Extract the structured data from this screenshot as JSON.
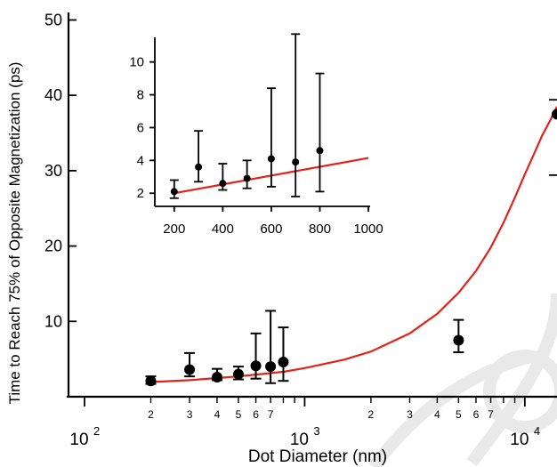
{
  "chart_data": [
    {
      "type": "scatter",
      "xlabel": "Dot Diameter (nm)",
      "ylabel": "Time to Reach 75% of Opposite Magnetization (ps)",
      "x_scale": "log",
      "xlim": [
        100,
        14000
      ],
      "ylim": [
        0,
        51
      ],
      "major_x_ticks": [
        {
          "value": 100,
          "base": "10",
          "exp": "2"
        },
        {
          "value": 1000,
          "base": "10",
          "exp": "3"
        },
        {
          "value": 10000,
          "base": "10",
          "exp": "4"
        }
      ],
      "minor_x_ticks": [
        {
          "value": 200,
          "label": "2"
        },
        {
          "value": 300,
          "label": "3"
        },
        {
          "value": 400,
          "label": "4"
        },
        {
          "value": 500,
          "label": "5"
        },
        {
          "value": 600,
          "label": "6"
        },
        {
          "value": 700,
          "label": "7"
        },
        {
          "value": 800,
          "label": ""
        },
        {
          "value": 900,
          "label": ""
        },
        {
          "value": 2000,
          "label": "2"
        },
        {
          "value": 3000,
          "label": "3"
        },
        {
          "value": 4000,
          "label": "4"
        },
        {
          "value": 5000,
          "label": "5"
        },
        {
          "value": 6000,
          "label": "6"
        },
        {
          "value": 7000,
          "label": "7"
        },
        {
          "value": 8000,
          "label": ""
        },
        {
          "value": 9000,
          "label": ""
        }
      ],
      "y_ticks": [
        10,
        20,
        30,
        40,
        50
      ],
      "y_tick_labels": [
        "10",
        "20",
        "30",
        "40",
        "50"
      ],
      "series": [
        {
          "kind": "points_with_error",
          "points": [
            {
              "x": 200,
              "y": 2.1,
              "lo": 1.7,
              "hi": 2.7
            },
            {
              "x": 300,
              "y": 3.6,
              "lo": 2.7,
              "hi": 5.8
            },
            {
              "x": 400,
              "y": 2.6,
              "lo": 2.2,
              "hi": 3.7
            },
            {
              "x": 500,
              "y": 3.0,
              "lo": 2.3,
              "hi": 4.0
            },
            {
              "x": 600,
              "y": 4.1,
              "lo": 2.4,
              "hi": 8.4
            },
            {
              "x": 700,
              "y": 4.0,
              "lo": 1.8,
              "hi": 11.4
            },
            {
              "x": 800,
              "y": 4.6,
              "lo": 2.1,
              "hi": 9.2
            },
            {
              "x": 5000,
              "y": 7.5,
              "lo": 5.9,
              "hi": 10.2
            },
            {
              "x": 14000,
              "y": 37.5
            }
          ]
        },
        {
          "kind": "fit_line",
          "color": "#e2231a",
          "x": [
            200,
            300,
            500,
            800,
            1000,
            1500,
            2000,
            3000,
            4000,
            5000,
            6000,
            7000,
            8000,
            9000,
            10000,
            11000,
            12000,
            13000,
            14000
          ],
          "y": [
            1.95,
            2.2,
            2.7,
            3.3,
            3.8,
            4.9,
            6.0,
            8.4,
            11.0,
            13.8,
            16.7,
            19.8,
            23.1,
            26.4,
            29.5,
            32.2,
            34.7,
            36.6,
            38.5
          ]
        }
      ]
    },
    {
      "type": "scatter",
      "inset": true,
      "xlim": [
        120,
        1000
      ],
      "ylim": [
        1.2,
        11.5
      ],
      "x_ticks": [
        200,
        400,
        600,
        800,
        1000
      ],
      "x_tick_labels": [
        "200",
        "400",
        "600",
        "800",
        "1000"
      ],
      "y_ticks": [
        2,
        4,
        6,
        8,
        10
      ],
      "y_tick_labels": [
        "2",
        "4",
        "6",
        "8",
        "10"
      ],
      "series": [
        {
          "kind": "points_with_error",
          "points": [
            {
              "x": 200,
              "y": 2.1,
              "lo": 1.7,
              "hi": 2.8
            },
            {
              "x": 300,
              "y": 3.6,
              "lo": 2.7,
              "hi": 5.8
            },
            {
              "x": 400,
              "y": 2.6,
              "lo": 2.2,
              "hi": 3.8
            },
            {
              "x": 500,
              "y": 2.9,
              "lo": 2.3,
              "hi": 4.0
            },
            {
              "x": 600,
              "y": 4.1,
              "lo": 2.4,
              "hi": 8.4
            },
            {
              "x": 700,
              "y": 3.9,
              "lo": 1.8,
              "hi": 11.7
            },
            {
              "x": 800,
              "y": 4.6,
              "lo": 2.1,
              "hi": 9.3
            }
          ]
        },
        {
          "kind": "fit_line",
          "color": "#e2231a",
          "x": [
            200,
            1000
          ],
          "y": [
            2.0,
            4.15
          ]
        }
      ]
    }
  ]
}
